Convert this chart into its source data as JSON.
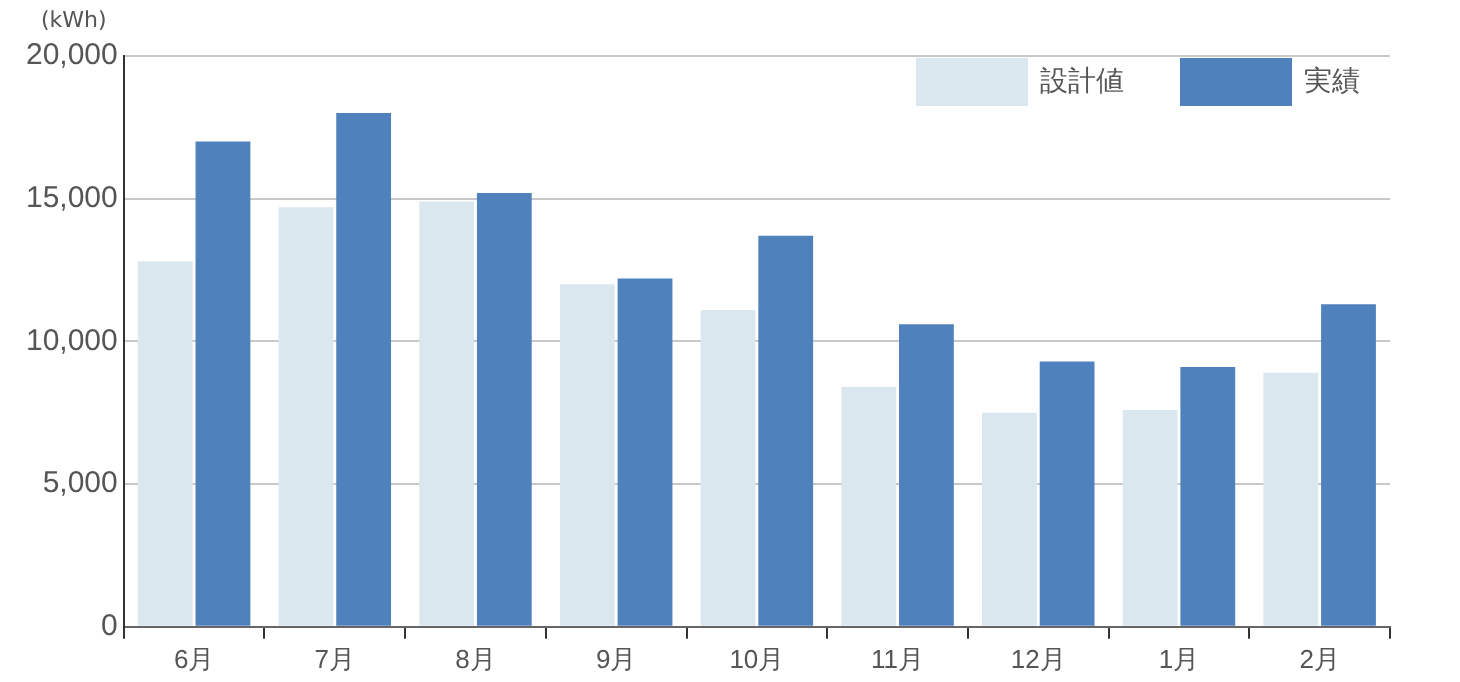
{
  "chart_data": {
    "type": "bar",
    "ylabel": "(kWh)",
    "categories": [
      "6月",
      "7月",
      "8月",
      "9月",
      "10月",
      "11月",
      "12月",
      "1月",
      "2月"
    ],
    "series": [
      {
        "name": "設計値",
        "color": "#dae7ef",
        "values": [
          12800,
          14700,
          14900,
          12000,
          11100,
          8400,
          7500,
          7600,
          8900
        ]
      },
      {
        "name": "実績",
        "color": "#4f81bd",
        "values": [
          17000,
          18000,
          15200,
          12200,
          13700,
          10600,
          9300,
          9100,
          11300
        ]
      }
    ],
    "ylim": [
      0,
      20000
    ],
    "yticks": [
      {
        "value": 0,
        "label": "0"
      },
      {
        "value": 5000,
        "label": "5,000"
      },
      {
        "value": 10000,
        "label": "10,000"
      },
      {
        "value": 15000,
        "label": "15,000"
      },
      {
        "value": 20000,
        "label": "20,000"
      }
    ],
    "grid": "y",
    "legend": "top right"
  }
}
